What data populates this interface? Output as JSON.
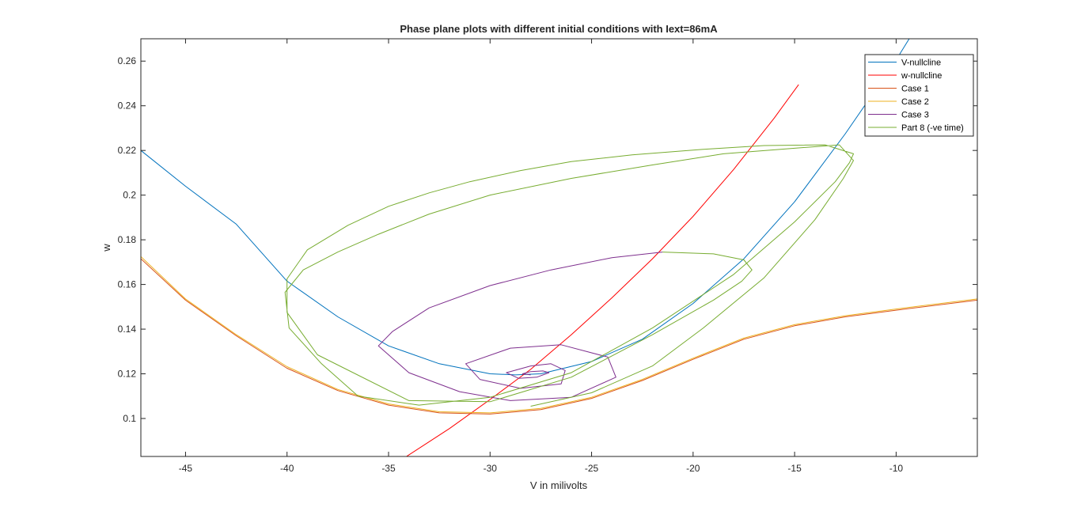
{
  "chart_data": {
    "type": "line",
    "title": "Phase plane plots with different initial conditions with Iext=86mA",
    "xlabel": "V in milivolts",
    "ylabel": "w",
    "xlim": [
      -47.2,
      -6
    ],
    "ylim": [
      0.083,
      0.27
    ],
    "xticks": [
      -45,
      -40,
      -35,
      -30,
      -25,
      -20,
      -15,
      -10
    ],
    "yticks": [
      0.1,
      0.12,
      0.14,
      0.16,
      0.18,
      0.2,
      0.22,
      0.24,
      0.26
    ],
    "grid": false,
    "legend_position": "top-right",
    "series": [
      {
        "name": "V-nullcline",
        "color": "#0072BD",
        "x": [
          -47.2,
          -45,
          -42.5,
          -40,
          -37.5,
          -35,
          -32.5,
          -30,
          -28.75,
          -27.5,
          -25,
          -22.5,
          -20,
          -17.5,
          -15,
          -12.5,
          -10,
          -8
        ],
        "y": [
          0.22,
          0.204,
          0.187,
          0.1615,
          0.1455,
          0.1325,
          0.1245,
          0.12,
          0.1195,
          0.12,
          0.1255,
          0.1355,
          0.1515,
          0.1715,
          0.197,
          0.2275,
          0.2605,
          0.29
        ]
      },
      {
        "name": "w-nullcline",
        "color": "#FF0000",
        "x": [
          -34.2,
          -32,
          -30,
          -28,
          -26,
          -24,
          -22,
          -20,
          -18,
          -16,
          -14.8
        ],
        "y": [
          0.0825,
          0.0955,
          0.1085,
          0.122,
          0.1375,
          0.154,
          0.1715,
          0.1905,
          0.2115,
          0.2345,
          0.2495
        ]
      },
      {
        "name": "Case 1",
        "color": "#D95319",
        "x": [
          -47.2,
          -45,
          -42.5,
          -40,
          -37.5,
          -35,
          -32.5,
          -30,
          -27.5,
          -25,
          -22.5,
          -20,
          -17.5,
          -15,
          -12.5,
          -10,
          -6
        ],
        "y": [
          0.1715,
          0.153,
          0.137,
          0.1225,
          0.1125,
          0.106,
          0.1025,
          0.102,
          0.104,
          0.109,
          0.117,
          0.1265,
          0.1355,
          0.1415,
          0.1455,
          0.1485,
          0.153
        ]
      },
      {
        "name": "Case 2",
        "color": "#EDB120",
        "x": [
          -47.2,
          -45,
          -42.5,
          -40,
          -37.5,
          -35,
          -32.5,
          -30,
          -27.5,
          -25,
          -22.5,
          -20,
          -17.5,
          -15,
          -12.5,
          -10,
          -6
        ],
        "y": [
          0.1725,
          0.1535,
          0.1375,
          0.1232,
          0.113,
          0.1065,
          0.103,
          0.1025,
          0.1045,
          0.1095,
          0.1175,
          0.127,
          0.136,
          0.142,
          0.146,
          0.149,
          0.1535
        ]
      },
      {
        "name": "Case 3",
        "color": "#7E2F8E",
        "x": [
          -21.5,
          -24,
          -27,
          -30,
          -33,
          -34.8,
          -35.5,
          -34,
          -31.5,
          -29,
          -26,
          -23.8,
          -24.2,
          -26.5,
          -29,
          -31.2,
          -30.5,
          -28.5,
          -26.5,
          -26.3,
          -27,
          -28,
          -29.2,
          -28.6,
          -27.7,
          -27.1,
          -27.4,
          -28,
          -28.4,
          -28
        ],
        "y": [
          0.1745,
          0.172,
          0.1665,
          0.1595,
          0.1495,
          0.139,
          0.1325,
          0.1205,
          0.112,
          0.108,
          0.1095,
          0.1185,
          0.1275,
          0.133,
          0.1315,
          0.1245,
          0.1175,
          0.1135,
          0.1155,
          0.1215,
          0.1245,
          0.1235,
          0.1205,
          0.118,
          0.1185,
          0.1205,
          0.1213,
          0.121,
          0.12,
          0.1195
        ]
      },
      {
        "name": "Part 8 (-ve time)",
        "color": "#77AC30",
        "x": [
          -21.5,
          -19,
          -17.5,
          -17.1,
          -17.6,
          -19,
          -22,
          -26,
          -30,
          -34,
          -38.5,
          -40,
          -40,
          -39,
          -37,
          -35,
          -33,
          -31,
          -28.5,
          -26,
          -23,
          -19.5,
          -16.5,
          -13.5,
          -12.1,
          -12.3,
          -13,
          -15,
          -18,
          -22,
          -26,
          -30,
          -33.5,
          -36.5,
          -38.3,
          -39.9,
          -40.1,
          -39.2,
          -37.5,
          -35.5,
          -33,
          -30,
          -26,
          -22,
          -18.5,
          -15,
          -12.8,
          -12.1,
          -12.6,
          -14,
          -16.5,
          -19.5,
          -22,
          -25,
          -28
        ],
        "y": [
          0.1745,
          0.1737,
          0.171,
          0.1665,
          0.1615,
          0.153,
          0.1375,
          0.1185,
          0.1075,
          0.108,
          0.1285,
          0.1475,
          0.1625,
          0.1755,
          0.1865,
          0.195,
          0.201,
          0.206,
          0.211,
          0.215,
          0.218,
          0.2205,
          0.2222,
          0.2225,
          0.2185,
          0.2145,
          0.206,
          0.188,
          0.1645,
          0.1405,
          0.1205,
          0.1095,
          0.106,
          0.11,
          0.1245,
          0.1405,
          0.1565,
          0.1665,
          0.1745,
          0.1825,
          0.1915,
          0.2,
          0.2075,
          0.2135,
          0.2185,
          0.221,
          0.2225,
          0.2155,
          0.2075,
          0.189,
          0.163,
          0.1405,
          0.1235,
          0.1115,
          0.1055
        ]
      }
    ]
  }
}
